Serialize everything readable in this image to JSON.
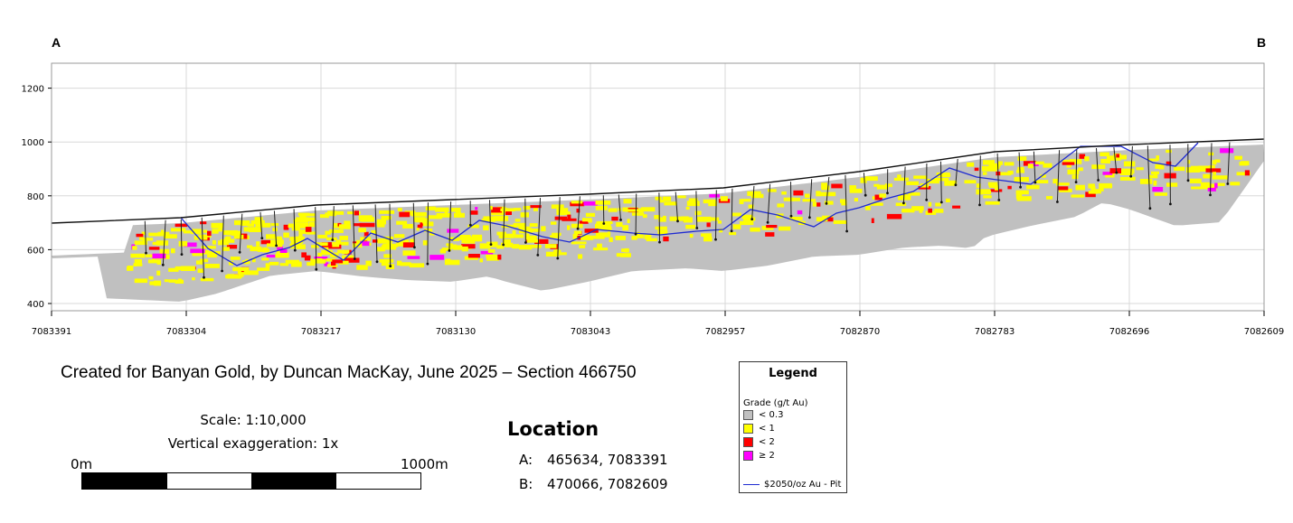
{
  "section": {
    "end_left": "A",
    "end_right": "B",
    "elevation_ticks": [
      "400",
      "600",
      "800",
      "1000",
      "1200"
    ],
    "northing_ticks": [
      "7083391",
      "7083304",
      "7083217",
      "7083130",
      "7083043",
      "7082957",
      "7082870",
      "7082783",
      "7082696",
      "7082609"
    ]
  },
  "credit": "Created for Banyan Gold, by Duncan MacKay, June 2025 – Section 466750",
  "scale": {
    "ratio": "Scale: 1:10,000",
    "exaggeration": "Vertical exaggeration: 1x",
    "bar_start": "0m",
    "bar_end": "1000m"
  },
  "location": {
    "title": "Location",
    "a_key": "A:",
    "a_value": "465634, 7083391",
    "b_key": "B:",
    "b_value": "470066, 7082609"
  },
  "legend": {
    "title": "Legend",
    "heading": "Grade (g/t Au)",
    "items": [
      {
        "label": "< 0.3",
        "color": "#c0c0c0"
      },
      {
        "label": "< 1",
        "color": "#ffff00"
      },
      {
        "label": "< 2",
        "color": "#ff0000"
      },
      {
        "label": "≥ 2",
        "color": "#ff00ff"
      }
    ],
    "pit_label": "$2050/oz Au - Pit",
    "pit_color": "#1f2bd1"
  }
}
